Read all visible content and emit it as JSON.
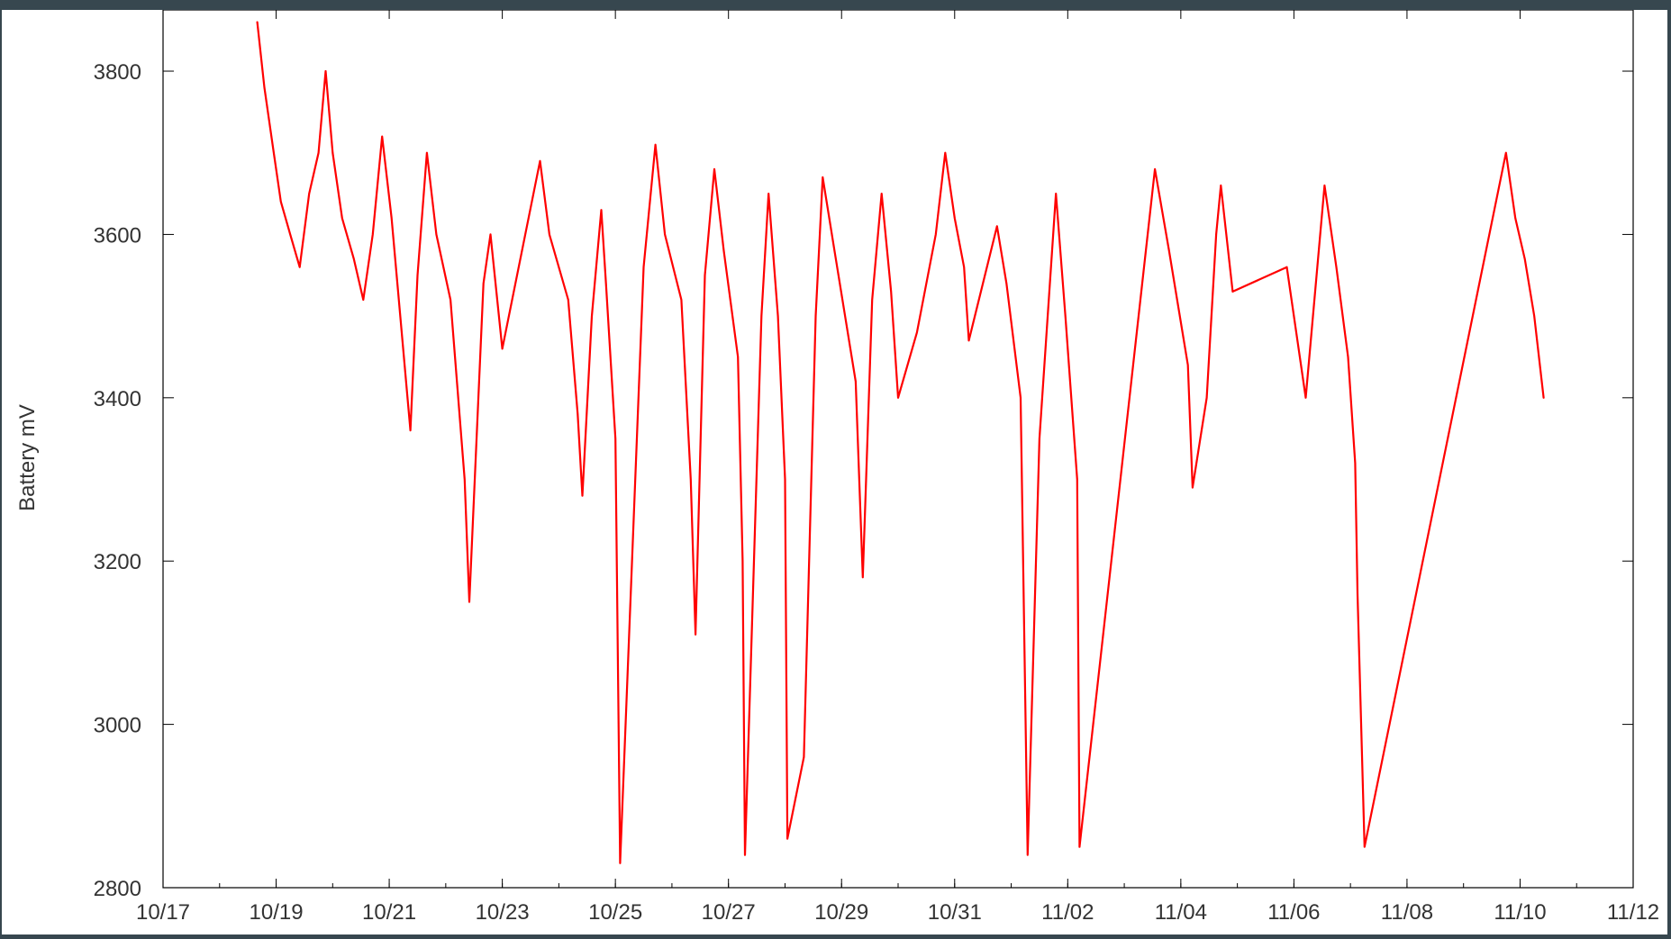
{
  "frame": {
    "background_color": "#37474f",
    "panel_color": "#ffffff"
  },
  "chart_data": {
    "type": "line",
    "title": "",
    "xlabel": "",
    "ylabel": "Battery mV",
    "x_type": "date",
    "xlim": [
      "10/17",
      "11/12"
    ],
    "ylim": [
      2800,
      3875
    ],
    "x_ticks": [
      "10/17",
      "10/19",
      "10/21",
      "10/23",
      "10/25",
      "10/27",
      "10/29",
      "10/31",
      "11/02",
      "11/04",
      "11/06",
      "11/08",
      "11/10",
      "11/12"
    ],
    "y_ticks": [
      2800,
      3000,
      3200,
      3400,
      3600,
      3800
    ],
    "x_minor_tick_days": 1,
    "grid": false,
    "legend": "none",
    "series": [
      {
        "color": "#ff0000",
        "points": [
          [
            "10/18 16:00",
            3860
          ],
          [
            "10/18 19:00",
            3780
          ],
          [
            "10/18 23:00",
            3700
          ],
          [
            "10/19 02:00",
            3640
          ],
          [
            "10/19 06:00",
            3600
          ],
          [
            "10/19 10:00",
            3560
          ],
          [
            "10/19 14:00",
            3650
          ],
          [
            "10/19 18:00",
            3700
          ],
          [
            "10/19 21:00",
            3800
          ],
          [
            "10/20 00:00",
            3700
          ],
          [
            "10/20 04:00",
            3620
          ],
          [
            "10/20 09:00",
            3570
          ],
          [
            "10/20 13:00",
            3520
          ],
          [
            "10/20 17:00",
            3600
          ],
          [
            "10/20 21:00",
            3720
          ],
          [
            "10/21 01:00",
            3620
          ],
          [
            "10/21 09:00",
            3360
          ],
          [
            "10/21 12:00",
            3550
          ],
          [
            "10/21 16:00",
            3700
          ],
          [
            "10/21 20:00",
            3600
          ],
          [
            "10/22 02:00",
            3520
          ],
          [
            "10/22 08:00",
            3300
          ],
          [
            "10/22 10:00",
            3150
          ],
          [
            "10/22 16:00",
            3540
          ],
          [
            "10/22 19:00",
            3600
          ],
          [
            "10/23 00:00",
            3460
          ],
          [
            "10/23 16:00",
            3690
          ],
          [
            "10/23 20:00",
            3600
          ],
          [
            "10/24 04:00",
            3520
          ],
          [
            "10/24 08:00",
            3380
          ],
          [
            "10/24 10:00",
            3280
          ],
          [
            "10/24 14:00",
            3500
          ],
          [
            "10/24 18:00",
            3630
          ],
          [
            "10/24 20:00",
            3540
          ],
          [
            "10/25 00:00",
            3350
          ],
          [
            "10/25 02:00",
            2830
          ],
          [
            "10/25 12:00",
            3560
          ],
          [
            "10/25 17:00",
            3710
          ],
          [
            "10/25 21:00",
            3600
          ],
          [
            "10/26 04:00",
            3520
          ],
          [
            "10/26 08:00",
            3300
          ],
          [
            "10/26 10:00",
            3110
          ],
          [
            "10/26 14:00",
            3550
          ],
          [
            "10/26 18:00",
            3680
          ],
          [
            "10/26 22:00",
            3580
          ],
          [
            "10/27 04:00",
            3450
          ],
          [
            "10/27 06:00",
            3200
          ],
          [
            "10/27 07:00",
            2840
          ],
          [
            "10/27 14:00",
            3500
          ],
          [
            "10/27 17:00",
            3650
          ],
          [
            "10/27 21:00",
            3500
          ],
          [
            "10/28 00:00",
            3300
          ],
          [
            "10/28 01:00",
            2860
          ],
          [
            "10/28 08:00",
            2960
          ],
          [
            "10/28 13:00",
            3500
          ],
          [
            "10/28 16:00",
            3670
          ],
          [
            "10/28 21:00",
            3580
          ],
          [
            "10/29 06:00",
            3420
          ],
          [
            "10/29 09:00",
            3180
          ],
          [
            "10/29 13:00",
            3520
          ],
          [
            "10/29 17:00",
            3650
          ],
          [
            "10/29 21:00",
            3530
          ],
          [
            "10/30 00:00",
            3400
          ],
          [
            "10/30 08:00",
            3480
          ],
          [
            "10/30 16:00",
            3600
          ],
          [
            "10/30 20:00",
            3700
          ],
          [
            "10/31 00:00",
            3620
          ],
          [
            "10/31 04:00",
            3560
          ],
          [
            "10/31 06:00",
            3470
          ],
          [
            "10/31 18:00",
            3610
          ],
          [
            "10/31 22:00",
            3540
          ],
          [
            "11/01 04:00",
            3400
          ],
          [
            "11/01 07:00",
            2840
          ],
          [
            "11/01 12:00",
            3350
          ],
          [
            "11/01 19:00",
            3650
          ],
          [
            "11/01 23:00",
            3500
          ],
          [
            "11/02 04:00",
            3300
          ],
          [
            "11/02 05:00",
            2850
          ],
          [
            "11/03 13:00",
            3680
          ],
          [
            "11/03 19:00",
            3580
          ],
          [
            "11/04 03:00",
            3440
          ],
          [
            "11/04 05:00",
            3290
          ],
          [
            "11/04 11:00",
            3400
          ],
          [
            "11/04 15:00",
            3600
          ],
          [
            "11/04 17:00",
            3660
          ],
          [
            "11/04 22:00",
            3530
          ],
          [
            "11/05 21:00",
            3560
          ],
          [
            "11/06 05:00",
            3400
          ],
          [
            "11/06 13:00",
            3660
          ],
          [
            "11/06 18:00",
            3560
          ],
          [
            "11/06 23:00",
            3450
          ],
          [
            "11/07 02:00",
            3320
          ],
          [
            "11/07 03:00",
            3160
          ],
          [
            "11/07 06:00",
            2850
          ],
          [
            "11/09 18:00",
            3700
          ],
          [
            "11/09 22:00",
            3620
          ],
          [
            "11/10 02:00",
            3570
          ],
          [
            "11/10 06:00",
            3500
          ],
          [
            "11/10 10:00",
            3400
          ]
        ]
      }
    ]
  }
}
